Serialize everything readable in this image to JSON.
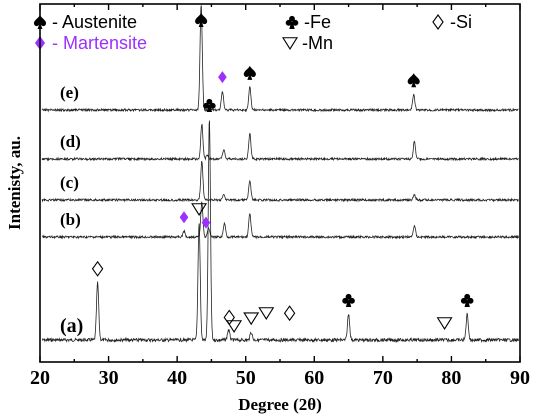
{
  "chart_data": {
    "type": "line",
    "xlabel": "Degree (2θ)",
    "ylabel": "Intenisty, au.",
    "xlim": [
      20,
      90
    ],
    "xticks": [
      20,
      30,
      40,
      50,
      60,
      70,
      80,
      90
    ],
    "legend": [
      {
        "symbol": "spade-icon",
        "label": "- Austenite",
        "color": "#000000"
      },
      {
        "symbol": "diamond-filled-icon",
        "label": "- Martensite",
        "color": "#9b30ff"
      },
      {
        "symbol": "club-icon",
        "label": "-Fe",
        "color": "#000000"
      },
      {
        "symbol": "triangle-down-icon",
        "label": "-Mn",
        "color": "#000000"
      },
      {
        "symbol": "diamond-outline-icon",
        "label": "-Si",
        "color": "#000000"
      }
    ],
    "series": [
      {
        "name": "(a)",
        "peaks": [
          [
            28.4,
            0.22
          ],
          [
            43.2,
            0.45
          ],
          [
            44.7,
            0.85
          ],
          [
            47.5,
            0.04
          ],
          [
            50.8,
            0.03
          ],
          [
            65.0,
            0.1
          ],
          [
            82.3,
            0.1
          ]
        ],
        "markers": [
          {
            "kind": "diamond-outline-icon",
            "x": 28.4
          },
          {
            "kind": "triangle-down-icon",
            "x": 43.2
          },
          {
            "kind": "club-icon",
            "x": 44.7
          },
          {
            "kind": "diamond-outline-icon",
            "x": 47.6
          },
          {
            "kind": "triangle-down-icon",
            "x": 48.3
          },
          {
            "kind": "triangle-down-icon",
            "x": 50.8
          },
          {
            "kind": "triangle-down-icon",
            "x": 53.0
          },
          {
            "kind": "diamond-outline-icon",
            "x": 56.4
          },
          {
            "kind": "club-icon",
            "x": 65.0
          },
          {
            "kind": "triangle-down-icon",
            "x": 79.0
          },
          {
            "kind": "club-icon",
            "x": 82.3
          }
        ]
      },
      {
        "name": "(b)",
        "peaks": [
          [
            41.0,
            0.05
          ],
          [
            43.6,
            0.3
          ],
          [
            44.6,
            0.08
          ],
          [
            46.9,
            0.12
          ],
          [
            50.6,
            0.2
          ],
          [
            74.6,
            0.1
          ]
        ],
        "markers": [
          {
            "kind": "diamond-filled-icon",
            "x": 41.0
          },
          {
            "kind": "diamond-filled-icon",
            "x": 44.2
          }
        ]
      },
      {
        "name": "(c)",
        "peaks": [
          [
            43.6,
            0.35
          ],
          [
            46.8,
            0.05
          ],
          [
            50.6,
            0.18
          ],
          [
            74.6,
            0.05
          ]
        ],
        "markers": []
      },
      {
        "name": "(d)",
        "peaks": [
          [
            43.6,
            0.3
          ],
          [
            44.4,
            0.03
          ],
          [
            46.8,
            0.08
          ],
          [
            50.6,
            0.22
          ],
          [
            74.6,
            0.15
          ]
        ],
        "markers": []
      },
      {
        "name": "(e)",
        "peaks": [
          [
            43.5,
            1.0
          ],
          [
            46.6,
            0.18
          ],
          [
            50.6,
            0.22
          ],
          [
            74.5,
            0.15
          ]
        ],
        "markers": [
          {
            "kind": "spade-icon",
            "x": 43.5
          },
          {
            "kind": "diamond-filled-icon",
            "x": 46.6
          },
          {
            "kind": "spade-icon",
            "x": 50.6
          },
          {
            "kind": "spade-icon",
            "x": 74.5
          }
        ]
      }
    ]
  }
}
